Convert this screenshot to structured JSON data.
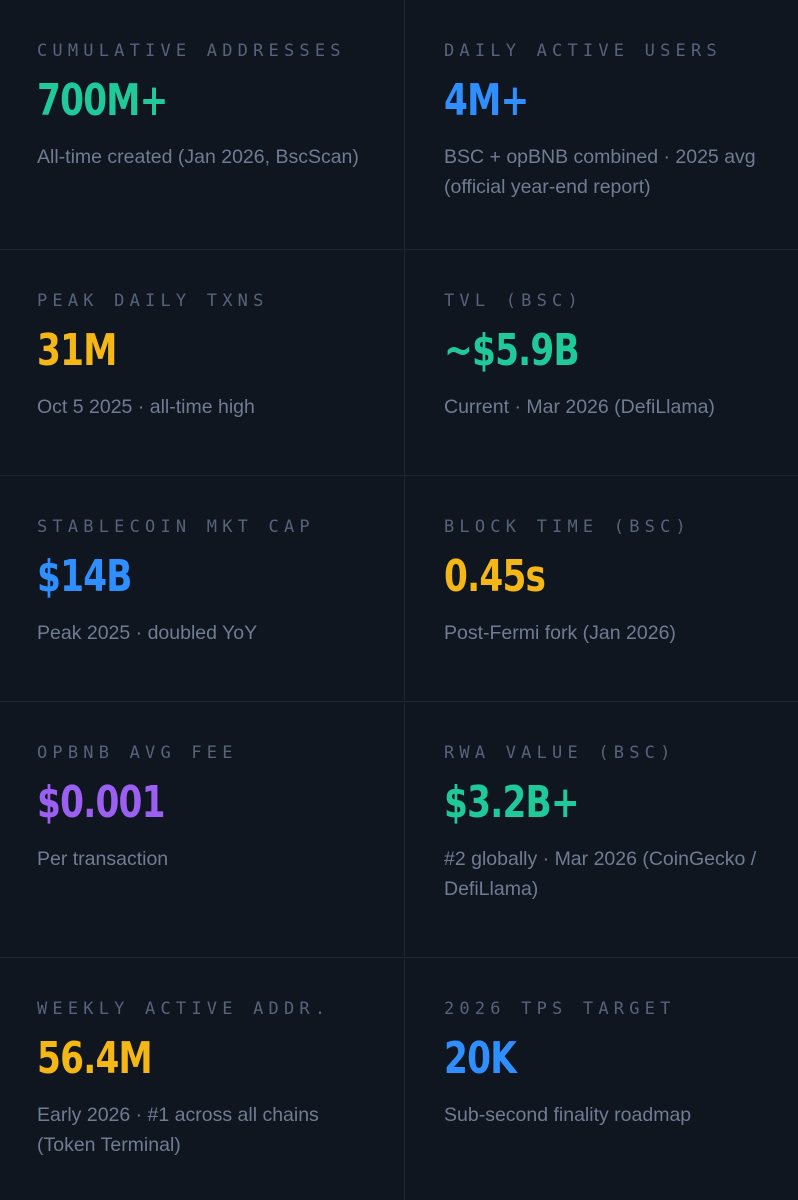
{
  "colors": {
    "background": "#101620",
    "divider": "#1c2637",
    "label": "#56637a",
    "description": "#6f7c92",
    "green": "#1fc99a",
    "blue": "#2f8fff",
    "yellow": "#f5b716",
    "purple": "#9b5ff2"
  },
  "stats": [
    {
      "label": "CUMULATIVE ADDRESSES",
      "value": "700M+",
      "color": "green",
      "description": "All-time created (Jan 2026, BscScan)"
    },
    {
      "label": "DAILY ACTIVE USERS",
      "value": "4M+",
      "color": "blue",
      "description": "BSC + opBNB combined · 2025 avg (official year-end report)"
    },
    {
      "label": "PEAK DAILY TXNS",
      "value": "31M",
      "color": "yellow",
      "description": "Oct 5 2025 · all-time high"
    },
    {
      "label": "TVL (BSC)",
      "value": "~$5.9B",
      "color": "green",
      "description": "Current · Mar 2026 (DefiLlama)"
    },
    {
      "label": "STABLECOIN MKT CAP",
      "value": "$14B",
      "color": "blue",
      "description": "Peak 2025 · doubled YoY"
    },
    {
      "label": "BLOCK TIME (BSC)",
      "value": "0.45s",
      "color": "yellow",
      "description": "Post-Fermi fork (Jan 2026)"
    },
    {
      "label": "OPBNB AVG FEE",
      "value": "$0.001",
      "color": "purple",
      "description": "Per transaction"
    },
    {
      "label": "RWA VALUE (BSC)",
      "value": "$3.2B+",
      "color": "green",
      "description": "#2 globally · Mar 2026 (CoinGecko / DefiLlama)"
    },
    {
      "label": "WEEKLY ACTIVE ADDR.",
      "value": "56.4M",
      "color": "yellow",
      "description": "Early 2026 · #1 across all chains (Token Terminal)"
    },
    {
      "label": "2026 TPS TARGET",
      "value": "20K",
      "color": "blue",
      "description": "Sub-second finality roadmap"
    }
  ]
}
